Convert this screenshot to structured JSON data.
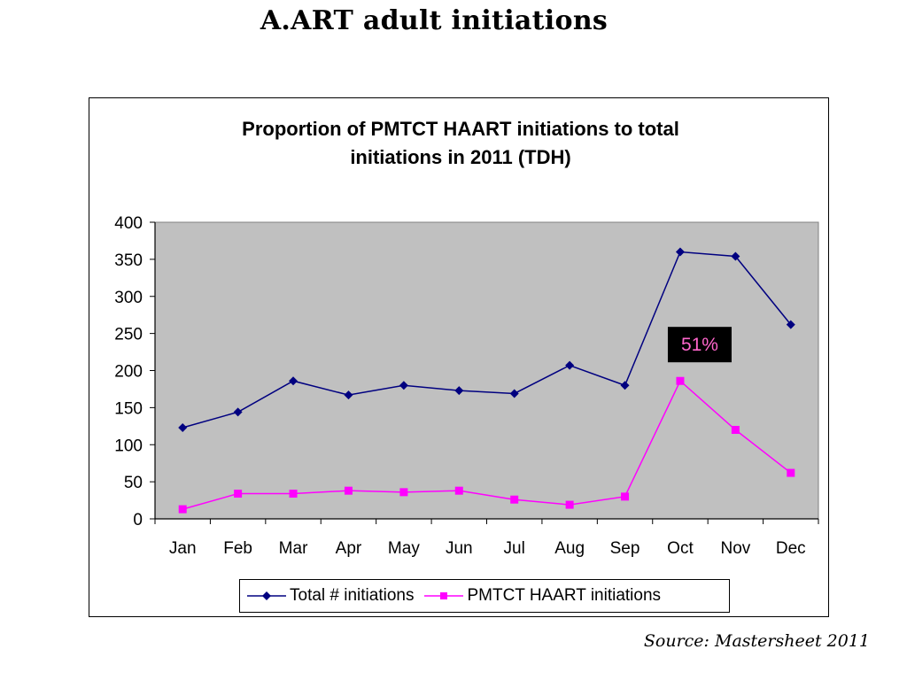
{
  "slide": {
    "title": "A.ART adult initiations",
    "source": "Source: Mastersheet 2011"
  },
  "chart_data": {
    "type": "line",
    "title_lines": [
      "Proportion of PMTCT HAART initiations to total",
      "initiations in 2011 (TDH)"
    ],
    "categories": [
      "Jan",
      "Feb",
      "Mar",
      "Apr",
      "May",
      "Jun",
      "Jul",
      "Aug",
      "Sep",
      "Oct",
      "Nov",
      "Dec"
    ],
    "y_ticks": [
      0,
      50,
      100,
      150,
      200,
      250,
      300,
      350,
      400
    ],
    "ylim": [
      0,
      400
    ],
    "grid": false,
    "plot_background": "#c0c0c0",
    "legend_position": "bottom",
    "series": [
      {
        "name": "Total # initiations",
        "color": "#000080",
        "marker": "diamond",
        "values": [
          123,
          144,
          186,
          167,
          180,
          173,
          169,
          207,
          180,
          360,
          354,
          262
        ]
      },
      {
        "name": "PMTCT HAART initiations",
        "color": "#ff00ff",
        "marker": "square",
        "values": [
          13,
          34,
          34,
          38,
          36,
          38,
          26,
          19,
          30,
          186,
          120,
          62
        ]
      }
    ],
    "annotations": [
      {
        "text": "51%",
        "category": "Oct",
        "y": 235,
        "text_color": "#ff66cc",
        "background": "#000000"
      }
    ]
  }
}
